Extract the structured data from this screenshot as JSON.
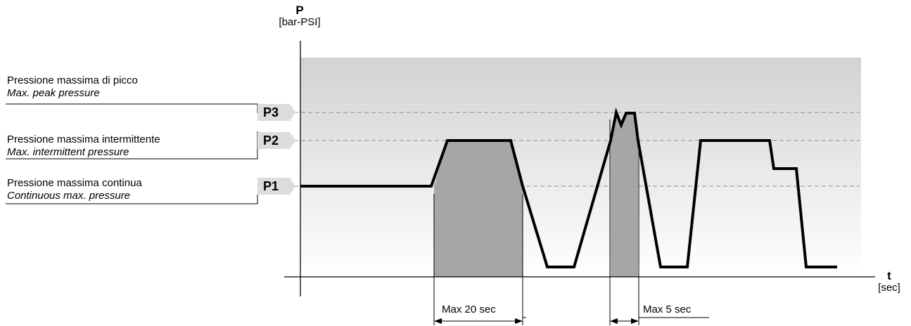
{
  "y_axis": {
    "symbol": "P",
    "unit": "[bar-PSI]"
  },
  "x_axis": {
    "symbol": "t",
    "unit": "[sec]"
  },
  "levels": [
    {
      "tag": "P3",
      "label_it": "Pressione massima di picco",
      "label_en": "Max. peak pressure"
    },
    {
      "tag": "P2",
      "label_it": "Pressione massima intermittente",
      "label_en": "Max. intermittent pressure"
    },
    {
      "tag": "P1",
      "label_it": "Pressione massima continua",
      "label_en": "Continuous max. pressure"
    }
  ],
  "durations": [
    {
      "label": "Max 20 sec"
    },
    {
      "label": "Max 5 sec"
    }
  ],
  "colors": {
    "plot_top": "#d2d2d2",
    "plot_bottom": "#ffffff",
    "fill": "#a6a6a6",
    "tag_bg": "#dcdcdc",
    "dashed": "#a0a0a0",
    "curve": "#000000"
  }
}
